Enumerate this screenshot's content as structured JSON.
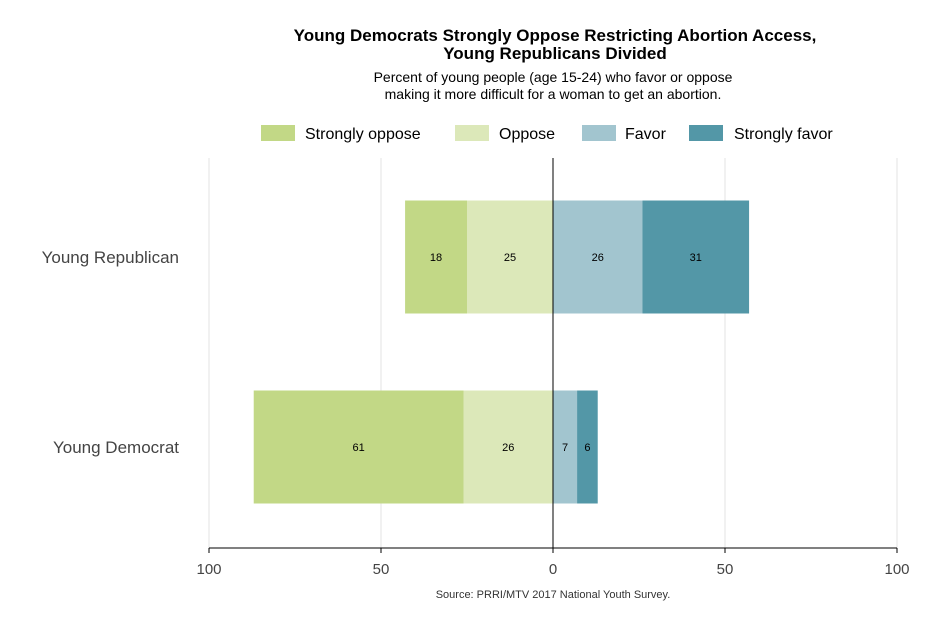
{
  "chart_data": {
    "type": "bar",
    "orientation": "horizontal-diverging",
    "title_lines": [
      "Young Democrats Strongly Oppose Restricting Abortion Access,",
      "Young Republicans Divided"
    ],
    "subtitle_lines": [
      "Percent of young people (age 15-24) who favor or oppose",
      "making it more difficult for a woman to get an abortion."
    ],
    "categories": [
      "Young Republican",
      "Young Democrat"
    ],
    "series": [
      {
        "name": "Strongly oppose",
        "side": "negative",
        "color": "#c2d886",
        "values": [
          18,
          61
        ]
      },
      {
        "name": "Oppose",
        "side": "negative",
        "color": "#dce8b9",
        "values": [
          25,
          26
        ]
      },
      {
        "name": "Favor",
        "side": "positive",
        "color": "#a2c5cf",
        "values": [
          26,
          7
        ]
      },
      {
        "name": "Strongly favor",
        "side": "positive",
        "color": "#5397a7",
        "values": [
          31,
          6
        ]
      }
    ],
    "xlim": [
      -100,
      100
    ],
    "xticks": [
      -100,
      -50,
      0,
      50,
      100
    ],
    "xtick_labels": [
      "100",
      "50",
      "0",
      "50",
      "100"
    ],
    "grid": true,
    "legend_position": "top",
    "source": "Source: PRRI/MTV 2017 National Youth Survey."
  }
}
